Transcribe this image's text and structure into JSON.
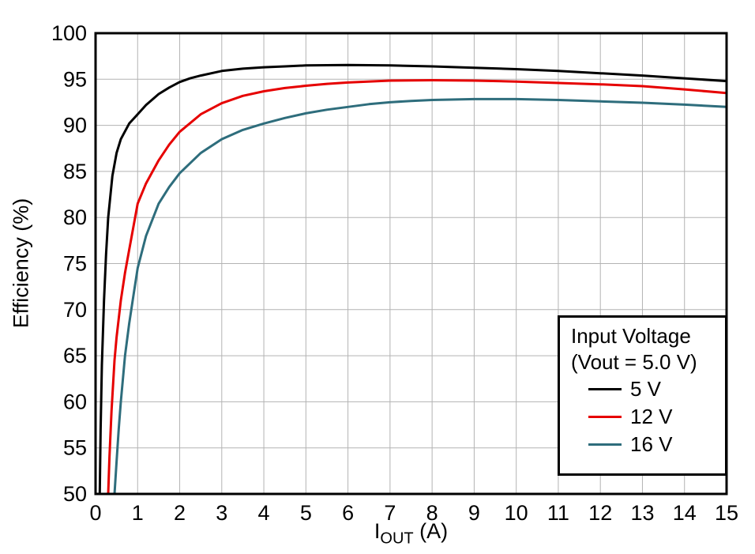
{
  "chart_data": {
    "type": "line",
    "title": "",
    "xlabel": "IOUT (A)",
    "xlabel_parts": {
      "main": "I",
      "sub": "OUT",
      "unit": " (A)"
    },
    "ylabel": "Efficiency (%)",
    "xlim": [
      0,
      15
    ],
    "ylim": [
      50,
      100
    ],
    "x_ticks": [
      0,
      1,
      2,
      3,
      4,
      5,
      6,
      7,
      8,
      9,
      10,
      11,
      12,
      13,
      14,
      15
    ],
    "y_ticks": [
      50,
      55,
      60,
      65,
      70,
      75,
      80,
      85,
      90,
      95,
      100
    ],
    "grid": true,
    "legend": {
      "position": "lower right",
      "title_line1": "Input Voltage",
      "title_line2": "(Vout = 5.0 V)"
    },
    "colors": {
      "frame": "#000000",
      "grid": "#b3b3b3",
      "background": "#ffffff"
    },
    "series": [
      {
        "name": "5 V",
        "color": "#000000",
        "points": [
          [
            0.1,
            50
          ],
          [
            0.12,
            57
          ],
          [
            0.15,
            64
          ],
          [
            0.2,
            71
          ],
          [
            0.25,
            76
          ],
          [
            0.3,
            80
          ],
          [
            0.4,
            84.5
          ],
          [
            0.5,
            87
          ],
          [
            0.6,
            88.5
          ],
          [
            0.8,
            90.2
          ],
          [
            1,
            91.2
          ],
          [
            1.2,
            92.2
          ],
          [
            1.5,
            93.4
          ],
          [
            1.75,
            94.1
          ],
          [
            2,
            94.7
          ],
          [
            2.25,
            95.1
          ],
          [
            2.5,
            95.4
          ],
          [
            3,
            95.9
          ],
          [
            3.5,
            96.15
          ],
          [
            4,
            96.3
          ],
          [
            4.5,
            96.4
          ],
          [
            5,
            96.5
          ],
          [
            6,
            96.55
          ],
          [
            7,
            96.5
          ],
          [
            8,
            96.4
          ],
          [
            9,
            96.25
          ],
          [
            10,
            96.1
          ],
          [
            11,
            95.9
          ],
          [
            12,
            95.65
          ],
          [
            13,
            95.4
          ],
          [
            14,
            95.1
          ],
          [
            15,
            94.8
          ]
        ]
      },
      {
        "name": "12 V",
        "color": "#e60000",
        "points": [
          [
            0.3,
            50
          ],
          [
            0.33,
            54
          ],
          [
            0.38,
            59
          ],
          [
            0.45,
            64.5
          ],
          [
            0.5,
            67
          ],
          [
            0.6,
            71
          ],
          [
            0.7,
            74
          ],
          [
            0.8,
            76.5
          ],
          [
            1,
            81.5
          ],
          [
            1.2,
            83.7
          ],
          [
            1.5,
            86.2
          ],
          [
            1.75,
            87.9
          ],
          [
            2,
            89.3
          ],
          [
            2.5,
            91.2
          ],
          [
            3,
            92.4
          ],
          [
            3.5,
            93.2
          ],
          [
            4,
            93.7
          ],
          [
            4.5,
            94.05
          ],
          [
            5,
            94.3
          ],
          [
            5.5,
            94.5
          ],
          [
            6,
            94.65
          ],
          [
            7,
            94.85
          ],
          [
            8,
            94.9
          ],
          [
            9,
            94.85
          ],
          [
            10,
            94.75
          ],
          [
            11,
            94.6
          ],
          [
            12,
            94.45
          ],
          [
            13,
            94.25
          ],
          [
            14,
            93.9
          ],
          [
            15,
            93.5
          ]
        ]
      },
      {
        "name": "16 V",
        "color": "#2e6d7c",
        "points": [
          [
            0.45,
            50
          ],
          [
            0.5,
            53.5
          ],
          [
            0.55,
            57
          ],
          [
            0.6,
            60
          ],
          [
            0.7,
            65
          ],
          [
            0.8,
            68.5
          ],
          [
            0.9,
            71.5
          ],
          [
            1,
            74.5
          ],
          [
            1.2,
            78
          ],
          [
            1.5,
            81.5
          ],
          [
            1.75,
            83.3
          ],
          [
            2,
            84.8
          ],
          [
            2.5,
            87
          ],
          [
            3,
            88.5
          ],
          [
            3.5,
            89.5
          ],
          [
            4,
            90.2
          ],
          [
            4.5,
            90.8
          ],
          [
            5,
            91.3
          ],
          [
            5.5,
            91.7
          ],
          [
            6,
            92.0
          ],
          [
            6.5,
            92.3
          ],
          [
            7,
            92.5
          ],
          [
            7.5,
            92.65
          ],
          [
            8,
            92.75
          ],
          [
            9,
            92.85
          ],
          [
            10,
            92.85
          ],
          [
            11,
            92.75
          ],
          [
            12,
            92.6
          ],
          [
            13,
            92.45
          ],
          [
            14,
            92.25
          ],
          [
            15,
            92.0
          ]
        ]
      }
    ]
  }
}
